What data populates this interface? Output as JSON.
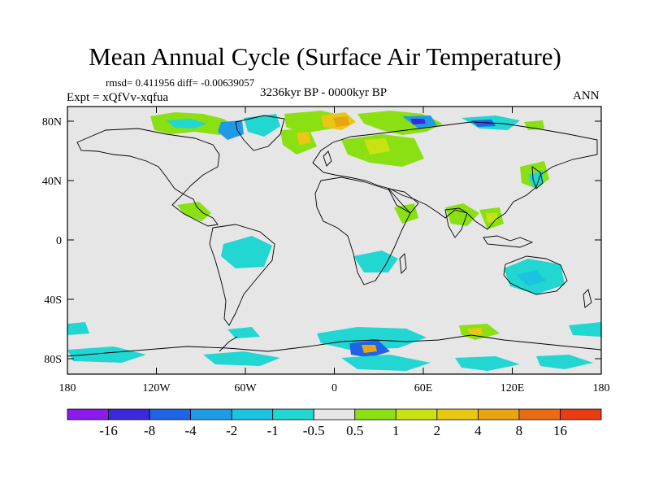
{
  "header": {
    "title": "Mean Annual Cycle (Surface Air Temperature)",
    "stats": "rmsd= 0.411956 diff= -0.00639057",
    "period": "3236kyr BP - 0000kyr BP",
    "experiment": "Expt = xQfVv-xqfua",
    "season": "ANN"
  },
  "axes": {
    "lat_labels": [
      "80N",
      "40N",
      "0",
      "40S",
      "80S"
    ],
    "lon_labels": [
      "180",
      "120W",
      "60W",
      "0",
      "60E",
      "120E",
      "180"
    ]
  },
  "colorbar": {
    "labels": [
      "-16",
      "-8",
      "-4",
      "-2",
      "-1",
      "-0.5",
      "0.5",
      "1",
      "2",
      "4",
      "8",
      "16"
    ],
    "colors": [
      "#8c1aeb",
      "#3c28d8",
      "#1f64e6",
      "#1f9be6",
      "#1bc3e0",
      "#22d6d2",
      "#e6e6e6",
      "#8ae013",
      "#c9e312",
      "#e8c813",
      "#e8a413",
      "#e86c13",
      "#e83c13"
    ]
  },
  "palette": {
    "land_outline": "#000000",
    "background": "#e6e6e6"
  }
}
